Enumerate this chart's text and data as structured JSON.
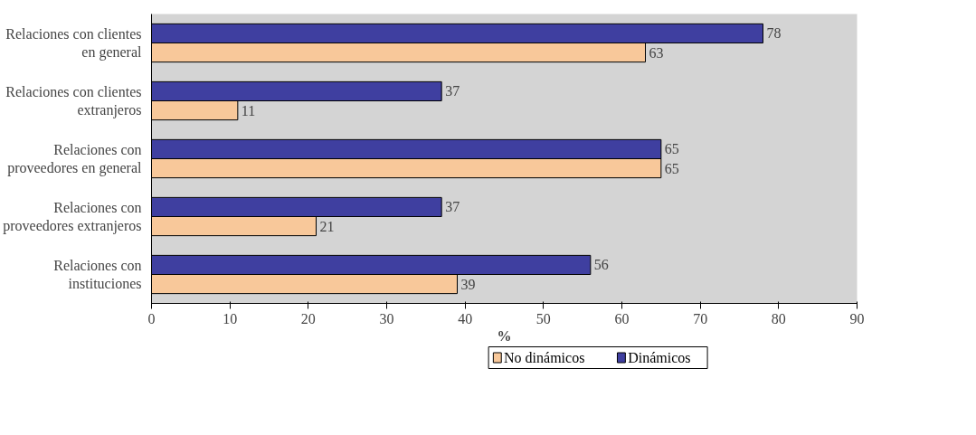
{
  "chart_data": {
    "type": "bar",
    "orientation": "horizontal",
    "xlabel": "%",
    "categories": [
      "Relaciones con clientes en general",
      "Relaciones con clientes extranjeros",
      "Relaciones con proveedores en general",
      "Relaciones con proveedores extranjeros",
      "Relaciones con instituciones"
    ],
    "series": [
      {
        "name": "No dinámicos",
        "color": "#f8c89a",
        "values": [
          63,
          11,
          65,
          21,
          39
        ]
      },
      {
        "name": "Dinámicos",
        "color": "#3f3fa0",
        "values": [
          78,
          37,
          65,
          37,
          56
        ]
      }
    ],
    "xlim": [
      0,
      90
    ],
    "xticks": [
      0,
      10,
      20,
      30,
      40,
      50,
      60,
      70,
      80,
      90
    ],
    "grid": false,
    "legend": "bottom",
    "data_labels": true
  }
}
